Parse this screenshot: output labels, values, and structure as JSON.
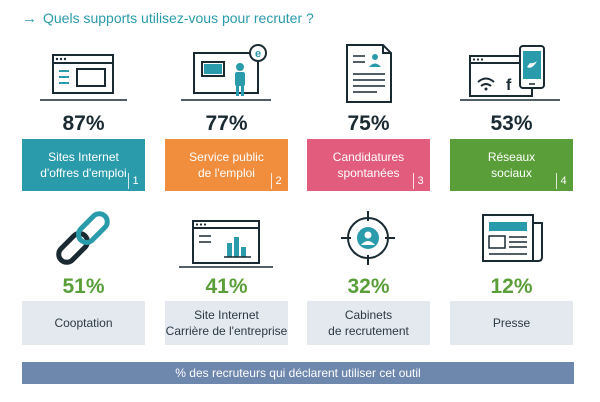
{
  "title": "Quels supports utilisez-vous pour recruter ?",
  "footer": "% des recruteurs qui déclarent utiliser cet outil",
  "colors": {
    "teal": "#2a9baa",
    "dark": "#1a2a33",
    "green": "#5a9e3a",
    "gray": "#e4e8ef",
    "footer": "#6d87ad"
  },
  "chart_data": {
    "type": "bar",
    "title": "Quels supports utilisez-vous pour recruter ?",
    "categories": [
      "Sites Internet d'offres d'emploi",
      "Service public de l'emploi",
      "Candidatures spontanées",
      "Réseaux sociaux",
      "Cooptation",
      "Site Internet Carrière de l'entreprise",
      "Cabinets de recrutement",
      "Presse"
    ],
    "values": [
      87,
      77,
      75,
      53,
      51,
      41,
      32,
      12
    ],
    "unit": "%",
    "note": "% des recruteurs qui déclarent utiliser cet outil"
  },
  "top_row": [
    {
      "pct": "87%",
      "line1": "Sites Internet",
      "line2": "d'offres d'emploi",
      "rank": "1",
      "color": "#2a9baa",
      "icon": "website-icon"
    },
    {
      "pct": "77%",
      "line1": "Service public",
      "line2": "de l'emploi",
      "rank": "2",
      "color": "#f08e3e",
      "icon": "public-service-icon"
    },
    {
      "pct": "75%",
      "line1": "Candidatures",
      "line2": "spontanées",
      "rank": "3",
      "color": "#e25d7d",
      "icon": "resume-icon"
    },
    {
      "pct": "53%",
      "line1": "Réseaux",
      "line2": "sociaux",
      "rank": "4",
      "color": "#5a9e3a",
      "icon": "social-network-icon"
    }
  ],
  "bottom_row": [
    {
      "pct": "51%",
      "line1": "Cooptation",
      "line2": "",
      "icon": "chain-link-icon"
    },
    {
      "pct": "41%",
      "line1": "Site Internet",
      "line2": "Carrière de l'entreprise",
      "icon": "career-site-icon"
    },
    {
      "pct": "32%",
      "line1": "Cabinets",
      "line2": "de recrutement",
      "icon": "target-person-icon"
    },
    {
      "pct": "12%",
      "line1": "Presse",
      "line2": "",
      "icon": "newspaper-icon"
    }
  ]
}
